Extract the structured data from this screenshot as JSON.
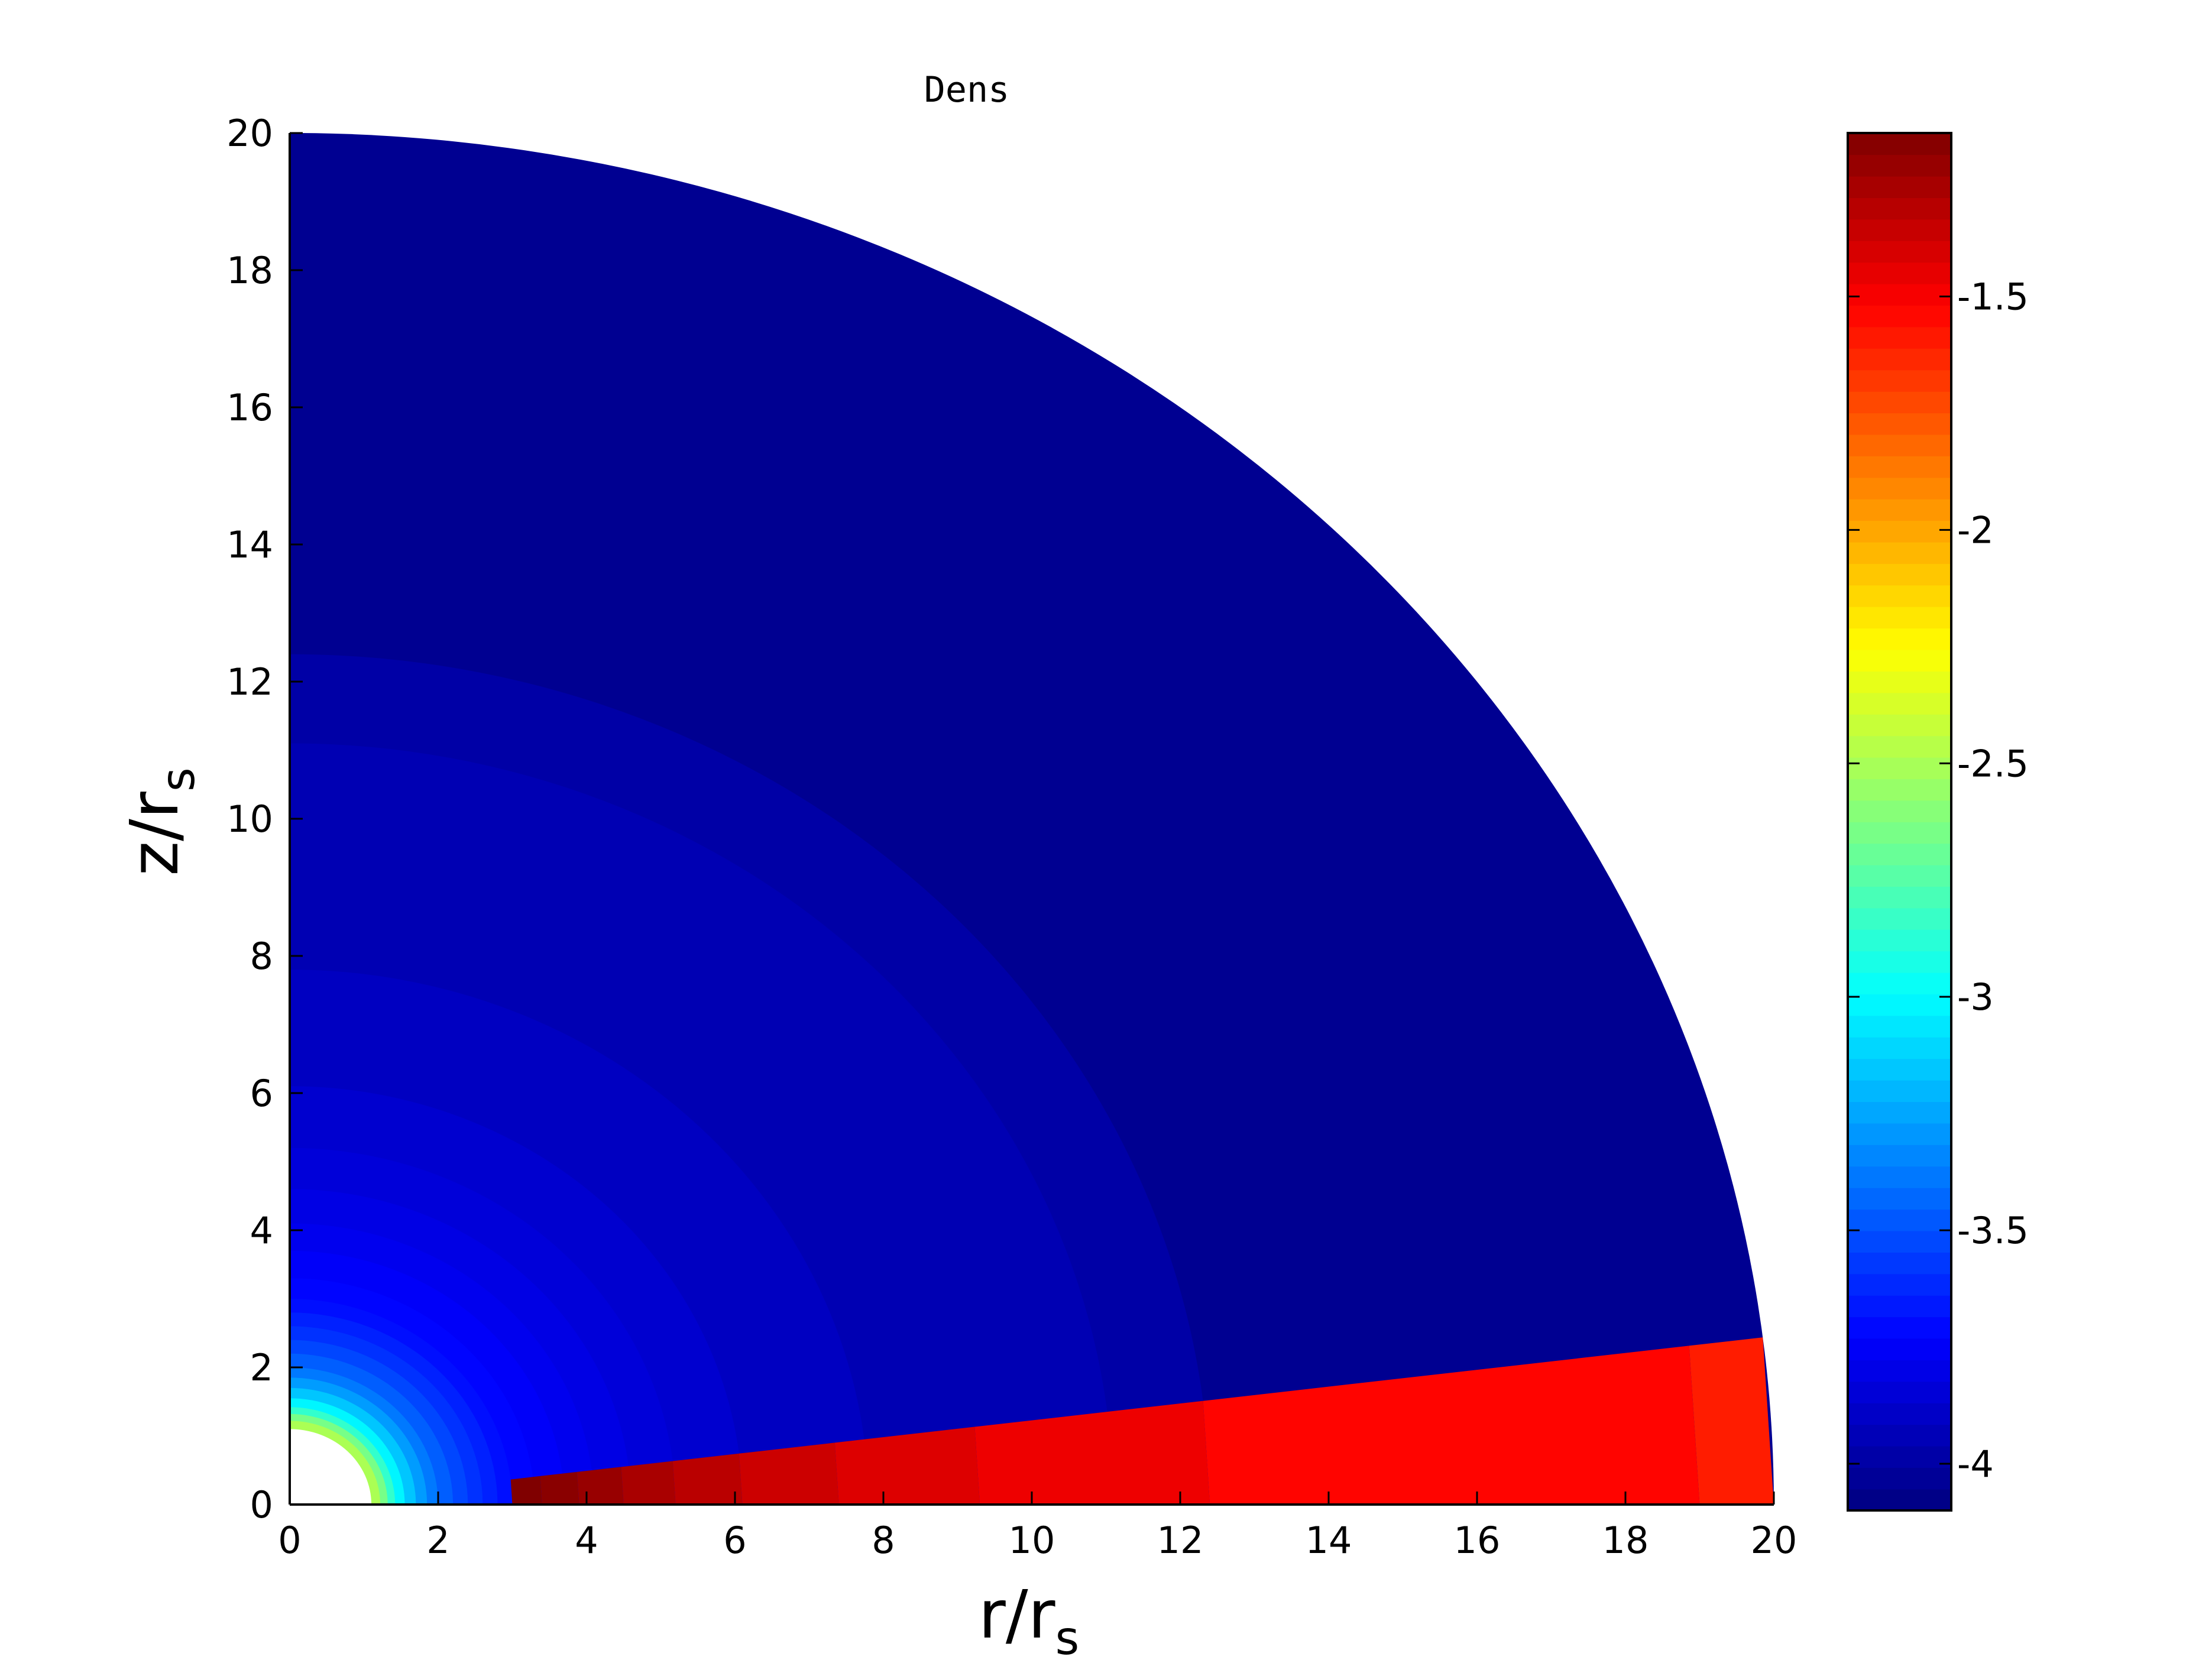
{
  "chart_data": {
    "type": "heatmap",
    "title": "Dens",
    "xlabel": "r/r",
    "xlabel_sub": "s",
    "ylabel": "z/r",
    "ylabel_sub": "s",
    "xlim": [
      0,
      20
    ],
    "ylim": [
      0,
      20
    ],
    "xticks": [
      "0",
      "2",
      "4",
      "6",
      "8",
      "10",
      "12",
      "14",
      "16",
      "18",
      "20"
    ],
    "yticks": [
      "0",
      "2",
      "4",
      "6",
      "8",
      "10",
      "12",
      "14",
      "16",
      "18",
      "20"
    ],
    "colorbar": {
      "range": [
        -4.1,
        -1.15
      ],
      "ticks": [
        -4,
        -3.5,
        -3,
        -2.5,
        -2,
        -1.5
      ],
      "tick_labels": [
        "-4",
        "-3.5",
        "-3",
        "-2.5",
        "-2",
        "-1.5"
      ],
      "colormap": "jet",
      "levels": 64
    },
    "domain": {
      "inner_radius": 1.1,
      "outer_radius": 20,
      "disk_angle_deg": 7
    },
    "atmosphere_shells": [
      {
        "r_outer": 20.0,
        "value": -4.05
      },
      {
        "r_outer": 12.4,
        "value": -3.99
      },
      {
        "r_outer": 11.1,
        "value": -3.95
      },
      {
        "r_outer": 7.8,
        "value": -3.91
      },
      {
        "r_outer": 6.1,
        "value": -3.87
      },
      {
        "r_outer": 5.2,
        "value": -3.84
      },
      {
        "r_outer": 4.6,
        "value": -3.81
      },
      {
        "r_outer": 4.1,
        "value": -3.78
      },
      {
        "r_outer": 3.7,
        "value": -3.75
      },
      {
        "r_outer": 3.3,
        "value": -3.72
      },
      {
        "r_outer": 3.0,
        "value": -3.69
      },
      {
        "r_outer": 2.8,
        "value": -3.64
      },
      {
        "r_outer": 2.6,
        "value": -3.59
      },
      {
        "r_outer": 2.4,
        "value": -3.53
      },
      {
        "r_outer": 2.2,
        "value": -3.46
      },
      {
        "r_outer": 2.0,
        "value": -3.38
      },
      {
        "r_outer": 1.85,
        "value": -3.28
      },
      {
        "r_outer": 1.7,
        "value": -3.16
      },
      {
        "r_outer": 1.55,
        "value": -3.02
      },
      {
        "r_outer": 1.42,
        "value": -2.85
      },
      {
        "r_outer": 1.32,
        "value": -2.65
      },
      {
        "r_outer": 1.22,
        "value": -2.5
      }
    ],
    "disk_segments": [
      {
        "r_start": 19.0,
        "r_end": 20.0,
        "value": -1.6
      },
      {
        "r_start": 12.4,
        "r_end": 19.0,
        "value": -1.53
      },
      {
        "r_start": 9.3,
        "r_end": 12.4,
        "value": -1.47
      },
      {
        "r_start": 7.4,
        "r_end": 9.3,
        "value": -1.42
      },
      {
        "r_start": 6.1,
        "r_end": 7.4,
        "value": -1.37
      },
      {
        "r_start": 5.2,
        "r_end": 6.1,
        "value": -1.32
      },
      {
        "r_start": 4.5,
        "r_end": 5.2,
        "value": -1.27
      },
      {
        "r_start": 3.9,
        "r_end": 4.5,
        "value": -1.22
      },
      {
        "r_start": 3.4,
        "r_end": 3.9,
        "value": -1.18
      },
      {
        "r_start": 3.0,
        "r_end": 3.4,
        "value": -1.14
      }
    ]
  }
}
